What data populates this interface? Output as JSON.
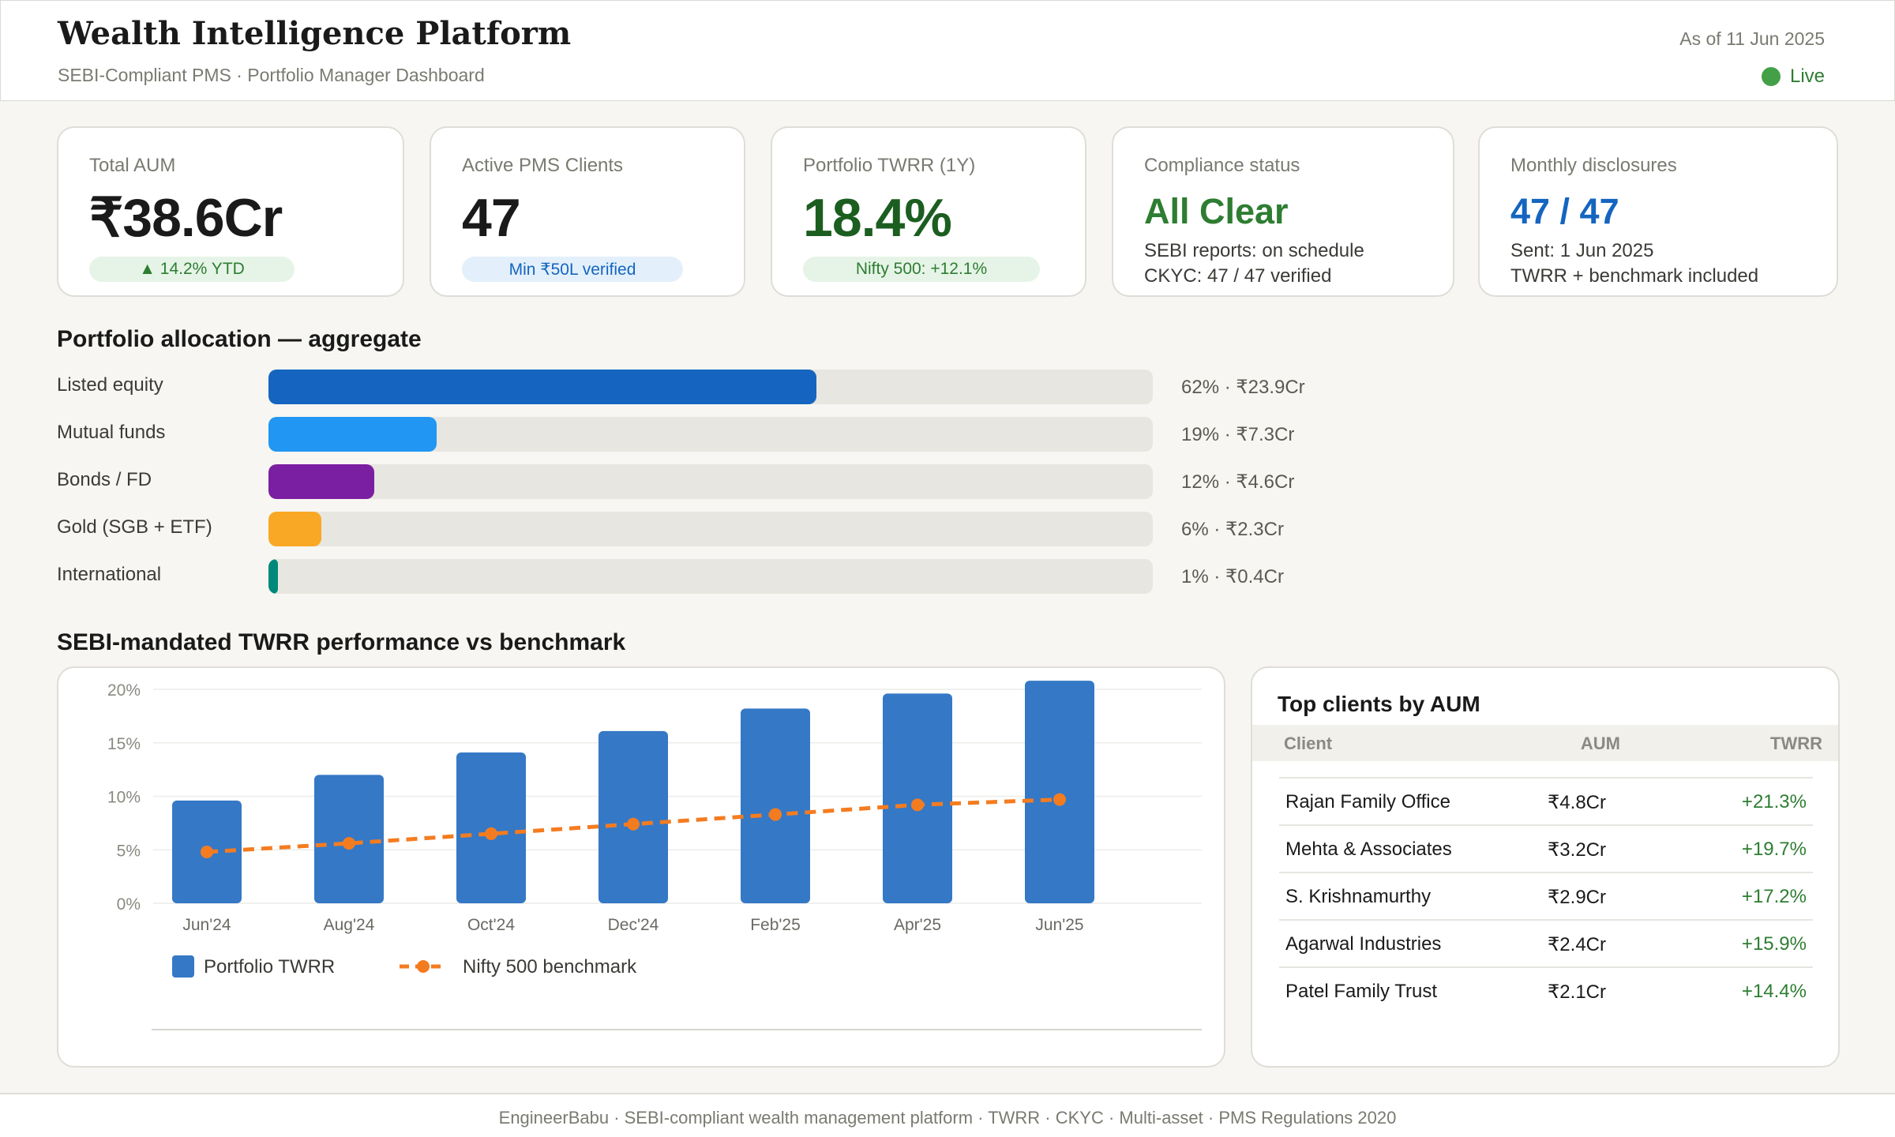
{
  "header": {
    "title": "Wealth Intelligence Platform",
    "subtitle": "SEBI-Compliant PMS · Portfolio Manager Dashboard",
    "as_of": "As of 11 Jun 2025",
    "live_label": "Live",
    "live_color": "#43a047"
  },
  "kpis": {
    "aum": {
      "label": "Total AUM",
      "value": "₹38.6Cr",
      "badge": "▲ 14.2% YTD"
    },
    "clients": {
      "label": "Active PMS Clients",
      "value": "47",
      "badge": "Min ₹50L verified"
    },
    "twrr": {
      "label": "Portfolio TWRR (1Y)",
      "value": "18.4%",
      "badge": "Nifty 500: +12.1%",
      "color": "#1b5e20"
    },
    "compliance": {
      "label": "Compliance status",
      "value": "All Clear",
      "line1": "SEBI reports: on schedule",
      "line2": "CKYC: 47 / 47 verified",
      "color": "#2e7d32"
    },
    "disclosures": {
      "label": "Monthly disclosures",
      "value": "47 / 47",
      "line1": "Sent: 1 Jun 2025",
      "line2": "TWRR + benchmark included",
      "color": "#1565c0"
    }
  },
  "allocation": {
    "title": "Portfolio allocation — aggregate",
    "items": [
      {
        "label": "Listed equity",
        "percent": 62,
        "value": "62% · ₹23.9Cr",
        "color": "#1565c0"
      },
      {
        "label": "Mutual funds",
        "percent": 19,
        "value": "19% · ₹7.3Cr",
        "color": "#2196f3"
      },
      {
        "label": "Bonds / FD",
        "percent": 12,
        "value": "12% · ₹4.6Cr",
        "color": "#7b1fa2"
      },
      {
        "label": "Gold (SGB + ETF)",
        "percent": 6,
        "value": "6% · ₹2.3Cr",
        "color": "#f9a825"
      },
      {
        "label": "International",
        "percent": 1,
        "value": "1% · ₹0.4Cr",
        "color": "#00897b"
      }
    ]
  },
  "performance": {
    "title": "SEBI-mandated TWRR performance vs benchmark"
  },
  "chart_data": {
    "type": "bar",
    "categories": [
      "Jun'24",
      "Aug'24",
      "Oct'24",
      "Dec'24",
      "Feb'25",
      "Apr'25",
      "Jun'25"
    ],
    "series": [
      {
        "name": "Portfolio TWRR",
        "type": "bar",
        "color": "#3578c6",
        "values": [
          9.6,
          12.0,
          14.1,
          16.1,
          18.2,
          19.6,
          20.8
        ]
      },
      {
        "name": "Nifty 500 benchmark",
        "type": "line",
        "color": "#f47c20",
        "values": [
          4.8,
          5.6,
          6.5,
          7.4,
          8.3,
          9.2,
          9.7
        ]
      }
    ],
    "yticks": [
      "0%",
      "5%",
      "10%",
      "15%",
      "20%"
    ],
    "ylim": [
      0,
      20
    ],
    "grid": true,
    "legend": "bottom-left"
  },
  "clients": {
    "title": "Top clients by AUM",
    "columns": {
      "client": "Client",
      "aum": "AUM",
      "twrr": "TWRR"
    },
    "rows": [
      {
        "name": "Rajan Family Office",
        "aum": "₹4.8Cr",
        "twrr": "+21.3%"
      },
      {
        "name": "Mehta & Associates",
        "aum": "₹3.2Cr",
        "twrr": "+19.7%"
      },
      {
        "name": "S. Krishnamurthy",
        "aum": "₹2.9Cr",
        "twrr": "+17.2%"
      },
      {
        "name": "Agarwal Industries",
        "aum": "₹2.4Cr",
        "twrr": "+15.9%"
      },
      {
        "name": "Patel Family Trust",
        "aum": "₹2.1Cr",
        "twrr": "+14.4%"
      }
    ]
  },
  "footer": {
    "text": "EngineerBabu · SEBI-compliant wealth management platform · TWRR · CKYC · Multi-asset · PMS Regulations 2020"
  }
}
